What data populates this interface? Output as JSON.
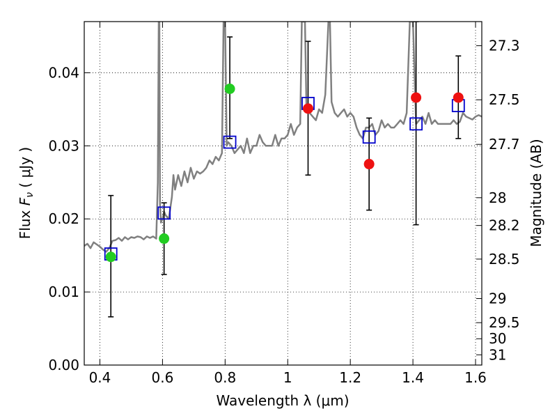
{
  "chart_data": {
    "type": "scatter",
    "xlabel": "Wavelength  λ (μm)",
    "ylabel": "Flux  F_ν  ( μJy )",
    "ylabel_parts": {
      "prefix": "Flux  ",
      "symbol": "F",
      "subscript": "ν",
      "unit": "  ( μJy )"
    },
    "y2label": "Magnitude (AB)",
    "xlim": [
      0.35,
      1.62
    ],
    "ylim": [
      0.0,
      0.047
    ],
    "grid": true,
    "grid_style": "dotted",
    "x_ticks": [
      0.4,
      0.6,
      0.8,
      1.0,
      1.2,
      1.4,
      1.6
    ],
    "x_tick_labels": [
      "0.4",
      "0.6",
      "0.8",
      "1",
      "1.2",
      "1.4",
      "1.6"
    ],
    "y_ticks": [
      0.0,
      0.01,
      0.02,
      0.03,
      0.04
    ],
    "y_tick_labels": [
      "0.00",
      "0.01",
      "0.02",
      "0.03",
      "0.04"
    ],
    "y2_ticks": [
      {
        "label": "27.3",
        "flux": 0.0437
      },
      {
        "label": "27.5",
        "flux": 0.0363
      },
      {
        "label": "27.7",
        "flux": 0.0302
      },
      {
        "label": "28",
        "flux": 0.0229
      },
      {
        "label": "28.2",
        "flux": 0.0191
      },
      {
        "label": "28.5",
        "flux": 0.0145
      },
      {
        "label": "29",
        "flux": 0.0091
      },
      {
        "label": "29.5",
        "flux": 0.0058
      },
      {
        "label": "30",
        "flux": 0.0036
      },
      {
        "label": "31",
        "flux": 0.0014
      }
    ],
    "colors": {
      "spectrum": "#808080",
      "model_box": "#0000cc",
      "green_points": "#22cc22",
      "red_points": "#ee1111",
      "errorbar": "#000000"
    },
    "series": [
      {
        "kind": "line",
        "role": "model spectrum",
        "x": [
          0.35,
          0.36,
          0.37,
          0.38,
          0.39,
          0.4,
          0.41,
          0.42,
          0.43,
          0.44,
          0.45,
          0.46,
          0.47,
          0.48,
          0.49,
          0.5,
          0.51,
          0.52,
          0.53,
          0.54,
          0.55,
          0.56,
          0.57,
          0.58,
          0.585,
          0.588,
          0.59,
          0.592,
          0.595,
          0.6,
          0.605,
          0.61,
          0.62,
          0.63,
          0.635,
          0.64,
          0.65,
          0.66,
          0.67,
          0.68,
          0.69,
          0.7,
          0.71,
          0.72,
          0.73,
          0.74,
          0.75,
          0.76,
          0.77,
          0.78,
          0.79,
          0.795,
          0.8,
          0.805,
          0.81,
          0.82,
          0.83,
          0.84,
          0.85,
          0.86,
          0.87,
          0.88,
          0.89,
          0.9,
          0.91,
          0.92,
          0.93,
          0.94,
          0.95,
          0.96,
          0.97,
          0.98,
          0.99,
          1.0,
          1.01,
          1.02,
          1.03,
          1.04,
          1.045,
          1.05,
          1.055,
          1.06,
          1.07,
          1.08,
          1.09,
          1.1,
          1.11,
          1.12,
          1.13,
          1.135,
          1.14,
          1.15,
          1.16,
          1.17,
          1.18,
          1.19,
          1.2,
          1.21,
          1.22,
          1.23,
          1.24,
          1.25,
          1.26,
          1.27,
          1.28,
          1.29,
          1.3,
          1.31,
          1.32,
          1.33,
          1.34,
          1.35,
          1.36,
          1.37,
          1.38,
          1.39,
          1.4,
          1.41,
          1.42,
          1.43,
          1.44,
          1.45,
          1.46,
          1.47,
          1.48,
          1.49,
          1.5,
          1.51,
          1.52,
          1.53,
          1.54,
          1.55,
          1.56,
          1.57,
          1.58,
          1.59,
          1.6,
          1.61,
          1.62
        ],
        "y": [
          0.0163,
          0.0166,
          0.016,
          0.0168,
          0.0165,
          0.0162,
          0.0158,
          0.0155,
          0.016,
          0.017,
          0.0171,
          0.0174,
          0.017,
          0.0175,
          0.0172,
          0.0175,
          0.0174,
          0.0176,
          0.0175,
          0.0172,
          0.0176,
          0.0174,
          0.0176,
          0.0173,
          0.025,
          0.047,
          0.047,
          0.022,
          0.0195,
          0.02,
          0.021,
          0.0205,
          0.02,
          0.023,
          0.026,
          0.024,
          0.026,
          0.0245,
          0.0265,
          0.025,
          0.027,
          0.0255,
          0.0265,
          0.0262,
          0.0265,
          0.027,
          0.028,
          0.0275,
          0.0285,
          0.028,
          0.029,
          0.047,
          0.047,
          0.03,
          0.0305,
          0.03,
          0.029,
          0.0295,
          0.03,
          0.029,
          0.031,
          0.029,
          0.03,
          0.03,
          0.0315,
          0.0305,
          0.03,
          0.03,
          0.03,
          0.0315,
          0.03,
          0.031,
          0.031,
          0.0315,
          0.033,
          0.0315,
          0.0325,
          0.033,
          0.047,
          0.047,
          0.047,
          0.035,
          0.0345,
          0.034,
          0.0335,
          0.035,
          0.0345,
          0.037,
          0.047,
          0.047,
          0.036,
          0.0345,
          0.034,
          0.0345,
          0.035,
          0.034,
          0.0345,
          0.034,
          0.0325,
          0.0315,
          0.031,
          0.0325,
          0.0325,
          0.033,
          0.0315,
          0.032,
          0.0335,
          0.0325,
          0.033,
          0.0325,
          0.0325,
          0.033,
          0.0335,
          0.033,
          0.0345,
          0.047,
          0.047,
          0.033,
          0.0335,
          0.034,
          0.033,
          0.0345,
          0.033,
          0.0335,
          0.033,
          0.033,
          0.033,
          0.033,
          0.033,
          0.0335,
          0.033,
          0.0333,
          0.0345,
          0.034,
          0.0338,
          0.0336,
          0.034,
          0.0342,
          0.034
        ]
      },
      {
        "kind": "square",
        "role": "model broadband flux",
        "x": [
          0.435,
          0.605,
          0.815,
          1.065,
          1.26,
          1.41,
          1.545
        ],
        "y": [
          0.0152,
          0.0208,
          0.0305,
          0.0358,
          0.0312,
          0.033,
          0.0355
        ]
      },
      {
        "kind": "point",
        "role": "green measurements",
        "x": [
          0.435,
          0.605,
          0.815
        ],
        "y": [
          0.0148,
          0.0173,
          0.0378
        ],
        "yerr_low": [
          0.0066,
          0.0124,
          0.031
        ],
        "yerr_high": [
          0.0232,
          0.0222,
          0.0449
        ]
      },
      {
        "kind": "point",
        "role": "red measurements",
        "x": [
          1.065,
          1.26,
          1.41,
          1.545
        ],
        "y": [
          0.0351,
          0.0275,
          0.0366,
          0.0366
        ],
        "yerr_low": [
          0.026,
          0.0212,
          0.0192,
          0.031
        ],
        "yerr_high": [
          0.0443,
          0.0338,
          0.047,
          0.0423
        ]
      }
    ]
  }
}
